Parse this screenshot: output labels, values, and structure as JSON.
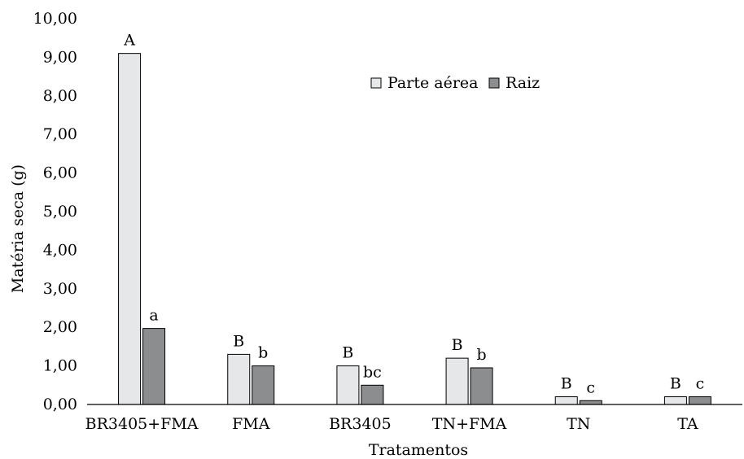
{
  "chart_data": {
    "type": "bar",
    "title": "",
    "xlabel": "Tratamentos",
    "ylabel": "Matéria seca (g)",
    "ylim": [
      0,
      10
    ],
    "yticks": [
      "0,00",
      "1,00",
      "2,00",
      "3,00",
      "4,00",
      "5,00",
      "6,00",
      "7,00",
      "8,00",
      "9,00",
      "10,00"
    ],
    "grid": false,
    "legend_position": "top-right",
    "categories": [
      "BR3405+FMA",
      "FMA",
      "BR3405",
      "TN+FMA",
      "TN",
      "TA"
    ],
    "series": [
      {
        "name": "Parte aérea",
        "color": "#e6e7e9",
        "values": [
          9.1,
          1.3,
          1.0,
          1.2,
          0.2,
          0.2
        ],
        "letters": [
          "A",
          "B",
          "B",
          "B",
          "B",
          "B"
        ]
      },
      {
        "name": "Raiz",
        "color": "#8c8d8f",
        "values": [
          1.97,
          1.0,
          0.5,
          0.95,
          0.1,
          0.2
        ],
        "letters": [
          "a",
          "b",
          "bc",
          "b",
          "c",
          "c"
        ]
      }
    ]
  }
}
